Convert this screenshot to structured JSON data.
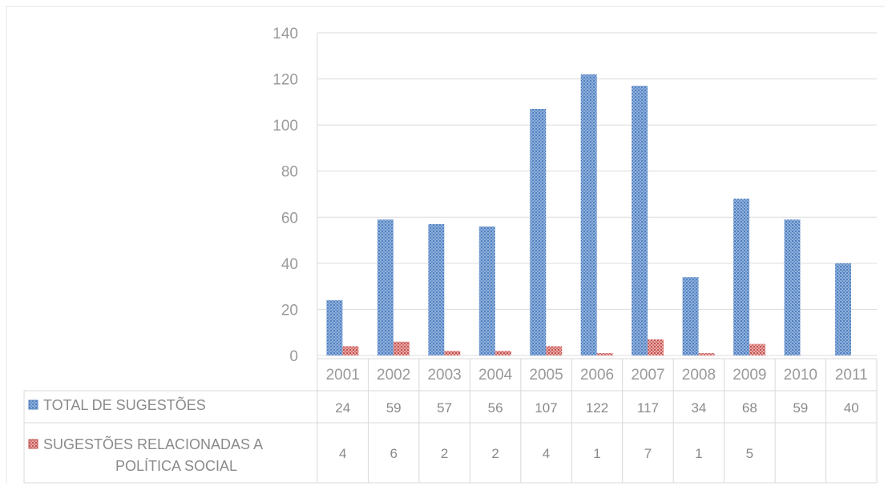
{
  "chart_data": {
    "type": "bar",
    "categories": [
      "2001",
      "2002",
      "2003",
      "2004",
      "2005",
      "2006",
      "2007",
      "2008",
      "2009",
      "2010",
      "2011"
    ],
    "series": [
      {
        "name": "TOTAL DE SUGESTÕES",
        "values": [
          24,
          59,
          57,
          56,
          107,
          122,
          117,
          34,
          68,
          59,
          40
        ],
        "labels": [
          "24",
          "59",
          "57",
          "56",
          "107",
          "122",
          "117",
          "34",
          "68",
          "59",
          "40"
        ],
        "color": "#4f81bd"
      },
      {
        "name_lines": [
          "SUGESTÕES RELACIONADAS A",
          "POLÍTICA SOCIAL"
        ],
        "values": [
          4,
          6,
          2,
          2,
          4,
          1,
          7,
          1,
          5,
          null,
          null
        ],
        "labels": [
          "4",
          "6",
          "2",
          "2",
          "4",
          "1",
          "7",
          "1",
          "5",
          "",
          ""
        ],
        "color": "#c0504d"
      }
    ],
    "ylim": [
      0,
      140
    ],
    "yticks": [
      0,
      20,
      40,
      60,
      80,
      100,
      120,
      140
    ],
    "grid": true,
    "legend": "data-table"
  }
}
